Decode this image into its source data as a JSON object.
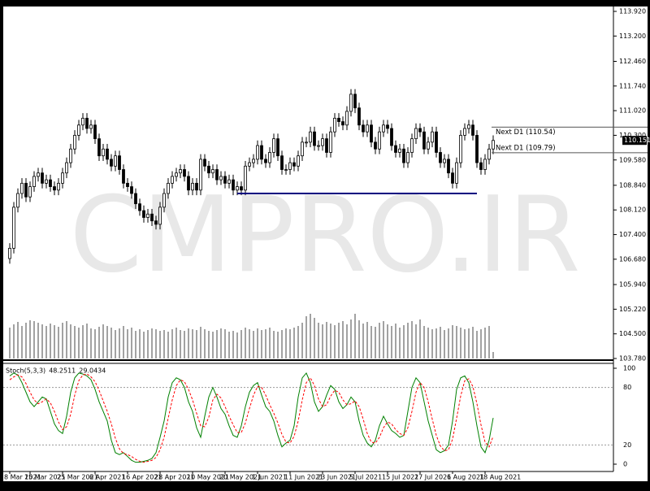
{
  "chart_data": [
    {
      "type": "candlestick",
      "watermark": "CMPRO.IR",
      "categories": [
        "8 Mar 2021",
        null,
        null,
        null,
        null,
        "15 Mar 2021",
        null,
        null,
        null,
        null,
        null,
        null,
        null,
        "25 Mar 2021",
        null,
        null,
        null,
        null,
        null,
        null,
        null,
        "6 Apr 2021",
        null,
        null,
        null,
        null,
        null,
        null,
        null,
        "16 Apr 2021",
        null,
        null,
        null,
        null,
        null,
        null,
        null,
        "28 Apr 2021",
        null,
        null,
        null,
        null,
        null,
        null,
        null,
        "10 May 2021",
        null,
        null,
        null,
        null,
        null,
        null,
        null,
        "20 May 2021",
        null,
        null,
        null,
        null,
        null,
        null,
        null,
        "1 Jun 2021",
        null,
        null,
        null,
        null,
        null,
        null,
        null,
        "11 Jun 2021",
        null,
        null,
        null,
        null,
        null,
        null,
        null,
        "23 Jun 2021",
        null,
        null,
        null,
        null,
        null,
        null,
        null,
        "5 Jul 2021",
        null,
        null,
        null,
        null,
        null,
        null,
        null,
        "15 Jul 2021",
        null,
        null,
        null,
        null,
        null,
        null,
        null,
        "27 Jul 2021",
        null,
        null,
        null,
        null,
        null,
        null,
        null,
        "6 Aug 2021",
        null,
        null,
        null,
        null,
        null,
        null,
        null,
        "18 Aug 2021",
        null,
        null
      ],
      "open": [
        106.7,
        107.0,
        108.2,
        108.6,
        108.9,
        108.5,
        108.8,
        109.1,
        109.2,
        108.9,
        109.0,
        108.8,
        108.7,
        108.9,
        109.2,
        109.5,
        109.9,
        110.3,
        110.6,
        110.8,
        110.5,
        110.6,
        110.2,
        109.7,
        109.9,
        109.6,
        109.4,
        109.7,
        109.3,
        108.9,
        108.8,
        108.6,
        108.3,
        108.1,
        107.9,
        108.0,
        107.8,
        107.7,
        108.2,
        108.6,
        108.9,
        109.1,
        109.2,
        109.3,
        109.1,
        108.7,
        108.9,
        108.7,
        109.6,
        109.4,
        109.2,
        109.3,
        109.0,
        109.1,
        108.9,
        109.0,
        108.7,
        108.8,
        108.7,
        109.4,
        109.5,
        109.6,
        110.0,
        109.6,
        109.5,
        109.8,
        110.2,
        109.7,
        109.3,
        109.3,
        109.5,
        109.4,
        109.7,
        110.1,
        110.1,
        110.4,
        110.0,
        110.0,
        110.2,
        109.8,
        110.4,
        110.8,
        110.7,
        110.6,
        111.0,
        111.5,
        111.1,
        110.6,
        110.4,
        110.6,
        110.1,
        109.9,
        110.4,
        110.6,
        110.5,
        110.0,
        109.8,
        109.9,
        109.5,
        109.8,
        110.2,
        110.5,
        110.4,
        109.9,
        110.1,
        110.4,
        109.8,
        109.5,
        109.6,
        109.2,
        108.9,
        109.5,
        110.3,
        110.5,
        110.6,
        110.3,
        109.5,
        109.3,
        109.6,
        109.9
      ],
      "high": [
        107.15,
        108.35,
        108.75,
        109.05,
        109.05,
        108.95,
        109.25,
        109.35,
        109.35,
        109.15,
        109.15,
        108.95,
        109.05,
        109.35,
        109.65,
        110.05,
        110.45,
        110.75,
        110.95,
        110.95,
        110.75,
        110.75,
        110.35,
        110.05,
        110.05,
        109.75,
        109.85,
        109.85,
        109.45,
        109.05,
        108.95,
        108.75,
        108.45,
        108.25,
        108.15,
        108.15,
        107.95,
        108.35,
        108.75,
        109.05,
        109.25,
        109.35,
        109.45,
        109.45,
        109.25,
        109.05,
        109.05,
        109.75,
        109.75,
        109.55,
        109.45,
        109.45,
        109.25,
        109.25,
        109.15,
        109.15,
        108.95,
        108.95,
        109.55,
        109.65,
        109.75,
        110.15,
        110.15,
        109.75,
        109.95,
        110.35,
        110.35,
        109.85,
        109.45,
        109.65,
        109.65,
        109.85,
        110.25,
        110.25,
        110.55,
        110.55,
        110.15,
        110.35,
        110.35,
        110.55,
        110.95,
        110.95,
        110.85,
        111.15,
        111.65,
        111.65,
        111.25,
        110.75,
        110.75,
        110.75,
        110.25,
        110.55,
        110.75,
        110.75,
        110.65,
        110.15,
        110.05,
        110.05,
        109.95,
        110.35,
        110.65,
        110.65,
        110.55,
        110.25,
        110.55,
        110.55,
        109.95,
        109.75,
        109.75,
        109.35,
        109.65,
        110.45,
        110.65,
        110.75,
        110.75,
        110.45,
        109.65,
        109.75,
        110.05,
        110.3
      ],
      "low": [
        106.55,
        106.85,
        108.05,
        108.45,
        108.35,
        108.35,
        108.65,
        108.95,
        108.75,
        108.75,
        108.65,
        108.55,
        108.55,
        108.75,
        109.05,
        109.35,
        109.75,
        110.15,
        110.45,
        110.35,
        110.35,
        110.05,
        109.55,
        109.55,
        109.45,
        109.25,
        109.25,
        109.15,
        108.75,
        108.65,
        108.45,
        108.15,
        107.95,
        107.75,
        107.75,
        107.65,
        107.55,
        107.55,
        108.05,
        108.45,
        108.75,
        108.95,
        109.05,
        108.95,
        108.55,
        108.55,
        108.55,
        108.55,
        109.25,
        109.05,
        109.05,
        108.85,
        108.85,
        108.75,
        108.75,
        108.55,
        108.55,
        108.55,
        108.55,
        109.25,
        109.35,
        109.45,
        109.45,
        109.35,
        109.35,
        109.65,
        109.55,
        109.15,
        109.15,
        109.15,
        109.25,
        109.25,
        109.55,
        109.95,
        109.95,
        109.85,
        109.85,
        109.85,
        109.65,
        109.65,
        110.25,
        110.55,
        110.45,
        110.45,
        110.85,
        110.95,
        110.45,
        110.25,
        110.25,
        109.95,
        109.75,
        109.75,
        110.25,
        110.35,
        109.85,
        109.65,
        109.65,
        109.35,
        109.35,
        109.65,
        110.05,
        110.25,
        109.75,
        109.75,
        109.95,
        109.65,
        109.35,
        109.35,
        109.05,
        108.75,
        108.75,
        109.35,
        110.15,
        110.35,
        110.15,
        109.35,
        109.15,
        109.15,
        109.45,
        109.75
      ],
      "close": [
        107.0,
        108.2,
        108.6,
        108.9,
        108.5,
        108.8,
        109.1,
        109.2,
        108.9,
        109.0,
        108.8,
        108.7,
        108.9,
        109.2,
        109.5,
        109.9,
        110.3,
        110.6,
        110.8,
        110.5,
        110.6,
        110.2,
        109.7,
        109.9,
        109.6,
        109.4,
        109.7,
        109.3,
        108.9,
        108.8,
        108.6,
        108.3,
        108.1,
        107.9,
        108.0,
        107.8,
        107.7,
        108.2,
        108.6,
        108.9,
        109.1,
        109.2,
        109.3,
        109.1,
        108.7,
        108.9,
        108.7,
        109.6,
        109.4,
        109.2,
        109.3,
        109.0,
        109.1,
        108.9,
        109.0,
        108.7,
        108.8,
        108.7,
        109.4,
        109.5,
        109.6,
        110.0,
        109.6,
        109.5,
        109.8,
        110.2,
        109.7,
        109.3,
        109.3,
        109.5,
        109.4,
        109.7,
        110.1,
        110.1,
        110.4,
        110.0,
        110.0,
        110.2,
        109.8,
        110.4,
        110.8,
        110.7,
        110.6,
        111.0,
        111.5,
        111.1,
        110.6,
        110.4,
        110.6,
        110.1,
        109.9,
        110.4,
        110.6,
        110.5,
        110.0,
        109.8,
        109.9,
        109.5,
        109.8,
        110.2,
        110.5,
        110.4,
        109.9,
        110.1,
        110.4,
        109.8,
        109.5,
        109.6,
        109.2,
        108.9,
        109.5,
        110.3,
        110.5,
        110.6,
        110.3,
        109.5,
        109.3,
        109.6,
        109.9,
        110.15
      ],
      "volume": [
        38,
        42,
        45,
        40,
        44,
        47,
        46,
        44,
        42,
        40,
        43,
        41,
        39,
        44,
        46,
        42,
        40,
        38,
        41,
        43,
        37,
        36,
        39,
        42,
        40,
        38,
        35,
        37,
        40,
        36,
        38,
        34,
        36,
        33,
        35,
        37,
        36,
        34,
        35,
        33,
        36,
        38,
        35,
        34,
        37,
        36,
        35,
        39,
        36,
        34,
        33,
        35,
        37,
        36,
        33,
        34,
        32,
        35,
        38,
        36,
        34,
        37,
        35,
        36,
        38,
        34,
        33,
        35,
        37,
        36,
        38,
        40,
        44,
        52,
        55,
        50,
        44,
        42,
        45,
        43,
        41,
        44,
        46,
        42,
        48,
        55,
        47,
        43,
        45,
        40,
        39,
        44,
        46,
        42,
        40,
        43,
        38,
        41,
        44,
        46,
        42,
        48,
        40,
        38,
        36,
        37,
        39,
        35,
        37,
        41,
        40,
        38,
        36,
        37,
        39,
        34,
        36,
        38,
        40,
        8
      ],
      "ylim": [
        103.78,
        113.92
      ],
      "yticks": [
        {
          "value": 113.92,
          "label": "113.920"
        },
        {
          "value": 113.2,
          "label": "113.200"
        },
        {
          "value": 112.46,
          "label": "112.460"
        },
        {
          "value": 111.74,
          "label": "111.740"
        },
        {
          "value": 111.02,
          "label": "111.020"
        },
        {
          "value": 110.3,
          "label": "110.300"
        },
        {
          "value": 109.58,
          "label": "109.580"
        },
        {
          "value": 108.84,
          "label": "108.840"
        },
        {
          "value": 108.12,
          "label": "108.120"
        },
        {
          "value": 107.4,
          "label": "107.400"
        },
        {
          "value": 106.68,
          "label": "106.680"
        },
        {
          "value": 105.94,
          "label": "105.940"
        },
        {
          "value": 105.22,
          "label": "105.220"
        },
        {
          "value": 104.5,
          "label": "104.500"
        },
        {
          "value": 103.78,
          "label": "103.780"
        }
      ],
      "current_price": 110.151,
      "annotations": [
        {
          "label": "Next D1 (110.54)",
          "value": 110.54
        },
        {
          "label": "Next D1 (109.79)",
          "value": 109.79
        }
      ],
      "support_line": {
        "value": 108.6,
        "color": "#000080",
        "from": 56,
        "to": 115
      }
    },
    {
      "type": "line",
      "title": "Stoch(5,3,3)",
      "ylim": [
        0,
        100
      ],
      "yticks": [
        0,
        20,
        80,
        100
      ],
      "series": [
        {
          "color": "#008000",
          "values": [
            92,
            95,
            93,
            85,
            75,
            65,
            60,
            65,
            70,
            68,
            55,
            42,
            35,
            32,
            50,
            75,
            90,
            95,
            94,
            92,
            88,
            78,
            65,
            55,
            45,
            25,
            12,
            10,
            12,
            8,
            4,
            2,
            2,
            3,
            4,
            6,
            12,
            28,
            45,
            70,
            85,
            90,
            88,
            80,
            65,
            55,
            38,
            28,
            50,
            70,
            80,
            70,
            58,
            52,
            40,
            30,
            28,
            40,
            60,
            75,
            82,
            85,
            72,
            60,
            55,
            45,
            30,
            18,
            22,
            25,
            40,
            70,
            90,
            95,
            85,
            65,
            55,
            60,
            72,
            82,
            78,
            65,
            58,
            62,
            70,
            65,
            45,
            30,
            22,
            18,
            25,
            40,
            50,
            42,
            35,
            32,
            28,
            30,
            55,
            80,
            90,
            85,
            65,
            45,
            30,
            15,
            12,
            14,
            20,
            45,
            78,
            90,
            92,
            85,
            65,
            40,
            18,
            12,
            25,
            48.2511
          ]
        },
        {
          "color": "#ff0000",
          "dash": true,
          "values": [
            88,
            91,
            93,
            91,
            84,
            75,
            67,
            63,
            65,
            68,
            64,
            55,
            44,
            36,
            39,
            52,
            72,
            87,
            93,
            94,
            91,
            86,
            77,
            66,
            55,
            42,
            27,
            16,
            11,
            10,
            8,
            5,
            3,
            2,
            3,
            4,
            7,
            15,
            28,
            48,
            67,
            82,
            88,
            86,
            78,
            67,
            53,
            40,
            39,
            49,
            67,
            73,
            69,
            60,
            50,
            41,
            33,
            33,
            43,
            58,
            72,
            81,
            80,
            72,
            62,
            53,
            43,
            31,
            23,
            22,
            29,
            45,
            67,
            85,
            90,
            82,
            68,
            60,
            62,
            71,
            77,
            75,
            67,
            62,
            63,
            66,
            60,
            47,
            32,
            23,
            22,
            28,
            38,
            44,
            42,
            36,
            32,
            30,
            38,
            55,
            75,
            85,
            80,
            65,
            47,
            30,
            19,
            14,
            15,
            26,
            48,
            71,
            87,
            89,
            81,
            63,
            41,
            23,
            18,
            29.0434
          ]
        }
      ]
    }
  ]
}
